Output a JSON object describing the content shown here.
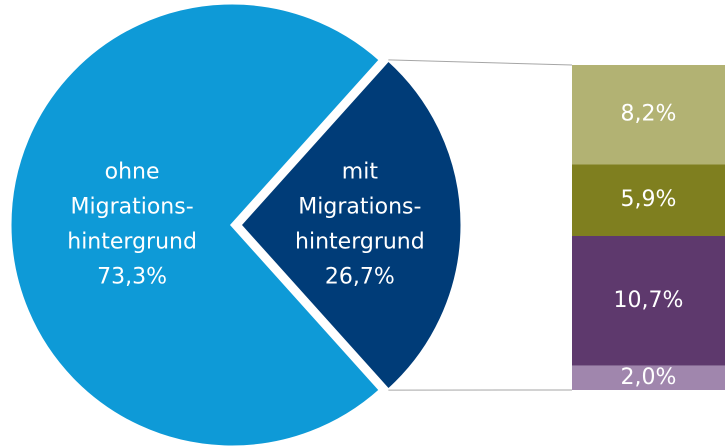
{
  "chart_data": {
    "type": "pie",
    "categories": [
      [
        "ohne",
        "Migrations-",
        "hintergrund"
      ],
      [
        "mit",
        "Migrations-",
        "hintergrund"
      ]
    ],
    "values": [
      73.3,
      26.7
    ],
    "value_labels": [
      "73,3%",
      "26,7%"
    ],
    "colors": [
      "#0e9ad7",
      "#003c78"
    ],
    "bar": {
      "values": [
        8.2,
        5.9,
        10.7,
        2.0
      ],
      "value_labels": [
        "8,2%",
        "5,9%",
        "10,7%",
        "2,0%"
      ],
      "colors": [
        "#b2b273",
        "#7f7f1f",
        "#5e396d",
        "#a086ad"
      ]
    }
  }
}
